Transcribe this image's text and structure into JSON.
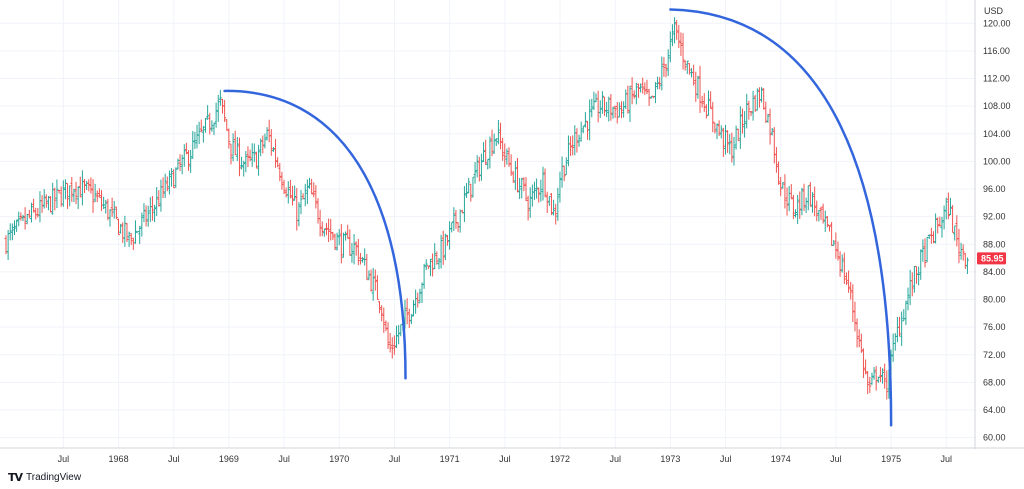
{
  "chart_data": {
    "type": "ohlc",
    "currency_label": "USD",
    "x_ticks": [
      {
        "label": "Jul",
        "t": 1967.5
      },
      {
        "label": "1968",
        "t": 1968.0
      },
      {
        "label": "Jul",
        "t": 1968.5
      },
      {
        "label": "1969",
        "t": 1969.0
      },
      {
        "label": "Jul",
        "t": 1969.5
      },
      {
        "label": "1970",
        "t": 1970.0
      },
      {
        "label": "Jul",
        "t": 1970.5
      },
      {
        "label": "1971",
        "t": 1971.0
      },
      {
        "label": "Jul",
        "t": 1971.5
      },
      {
        "label": "1972",
        "t": 1972.0
      },
      {
        "label": "Jul",
        "t": 1972.5
      },
      {
        "label": "1973",
        "t": 1973.0
      },
      {
        "label": "Jul",
        "t": 1973.5
      },
      {
        "label": "1974",
        "t": 1974.0
      },
      {
        "label": "Jul",
        "t": 1974.5
      },
      {
        "label": "1975",
        "t": 1975.0
      },
      {
        "label": "Jul",
        "t": 1975.5
      }
    ],
    "y_ticks": [
      "120.00",
      "116.00",
      "112.00",
      "108.00",
      "104.00",
      "100.00",
      "96.00",
      "92.00",
      "88.00",
      "84.00",
      "80.00",
      "76.00",
      "72.00",
      "68.00",
      "64.00",
      "60.00"
    ],
    "ylim": [
      58.5,
      122.5
    ],
    "xlim": [
      1966.98,
      1975.76
    ],
    "last_price": "85.95",
    "last_price_color": "#f23645",
    "up_color": "#26a69a",
    "down_color": "#ef5350",
    "arc_color": "#3366dd",
    "price_path": [
      [
        1966.98,
        88.5
      ],
      [
        1967.2,
        92.0
      ],
      [
        1967.42,
        94.5
      ],
      [
        1967.6,
        96.5
      ],
      [
        1967.78,
        95.0
      ],
      [
        1967.92,
        92.5
      ],
      [
        1968.1,
        88.5
      ],
      [
        1968.3,
        93.0
      ],
      [
        1968.55,
        99.0
      ],
      [
        1968.8,
        105.0
      ],
      [
        1968.92,
        108.5
      ],
      [
        1969.02,
        102.0
      ],
      [
        1969.15,
        99.5
      ],
      [
        1969.25,
        100.5
      ],
      [
        1969.35,
        104.0
      ],
      [
        1969.5,
        97.0
      ],
      [
        1969.62,
        92.5
      ],
      [
        1969.72,
        96.0
      ],
      [
        1969.85,
        91.0
      ],
      [
        1970.02,
        88.0
      ],
      [
        1970.15,
        87.5
      ],
      [
        1970.28,
        83.0
      ],
      [
        1970.38,
        79.5
      ],
      [
        1970.45,
        72.5
      ],
      [
        1970.55,
        75.5
      ],
      [
        1970.68,
        80.0
      ],
      [
        1970.8,
        85.0
      ],
      [
        1970.95,
        87.5
      ],
      [
        1971.1,
        93.0
      ],
      [
        1971.3,
        100.5
      ],
      [
        1971.42,
        104.0
      ],
      [
        1971.55,
        99.0
      ],
      [
        1971.72,
        94.0
      ],
      [
        1971.85,
        97.5
      ],
      [
        1971.95,
        92.0
      ],
      [
        1972.0,
        98.0
      ],
      [
        1972.15,
        104.0
      ],
      [
        1972.35,
        108.0
      ],
      [
        1972.55,
        107.5
      ],
      [
        1972.72,
        110.5
      ],
      [
        1972.82,
        108.0
      ],
      [
        1972.95,
        114.0
      ],
      [
        1973.04,
        119.0
      ],
      [
        1973.15,
        114.0
      ],
      [
        1973.3,
        109.0
      ],
      [
        1973.45,
        104.0
      ],
      [
        1973.55,
        101.5
      ],
      [
        1973.68,
        107.0
      ],
      [
        1973.82,
        110.0
      ],
      [
        1973.92,
        104.0
      ],
      [
        1974.0,
        96.5
      ],
      [
        1974.12,
        93.0
      ],
      [
        1974.25,
        95.5
      ],
      [
        1974.38,
        91.0
      ],
      [
        1974.5,
        87.5
      ],
      [
        1974.62,
        81.5
      ],
      [
        1974.72,
        73.0
      ],
      [
        1974.8,
        66.5
      ],
      [
        1974.88,
        70.0
      ],
      [
        1974.95,
        67.0
      ],
      [
        1975.05,
        75.0
      ],
      [
        1975.18,
        82.0
      ],
      [
        1975.28,
        86.0
      ],
      [
        1975.4,
        90.0
      ],
      [
        1975.52,
        93.5
      ],
      [
        1975.6,
        88.0
      ],
      [
        1975.7,
        85.95
      ]
    ],
    "arcs": [
      {
        "start": [
          1968.96,
          110.2
        ],
        "peak_ctrl": [
          1970.0,
          110.4
        ],
        "end": [
          1970.6,
          68.6
        ]
      },
      {
        "start": [
          1973.0,
          122.0
        ],
        "peak_ctrl": [
          1974.35,
          121.5
        ],
        "end": [
          1975.0,
          61.8
        ]
      }
    ]
  },
  "branding": {
    "logo_glyph": "TV",
    "name": "TradingView"
  }
}
